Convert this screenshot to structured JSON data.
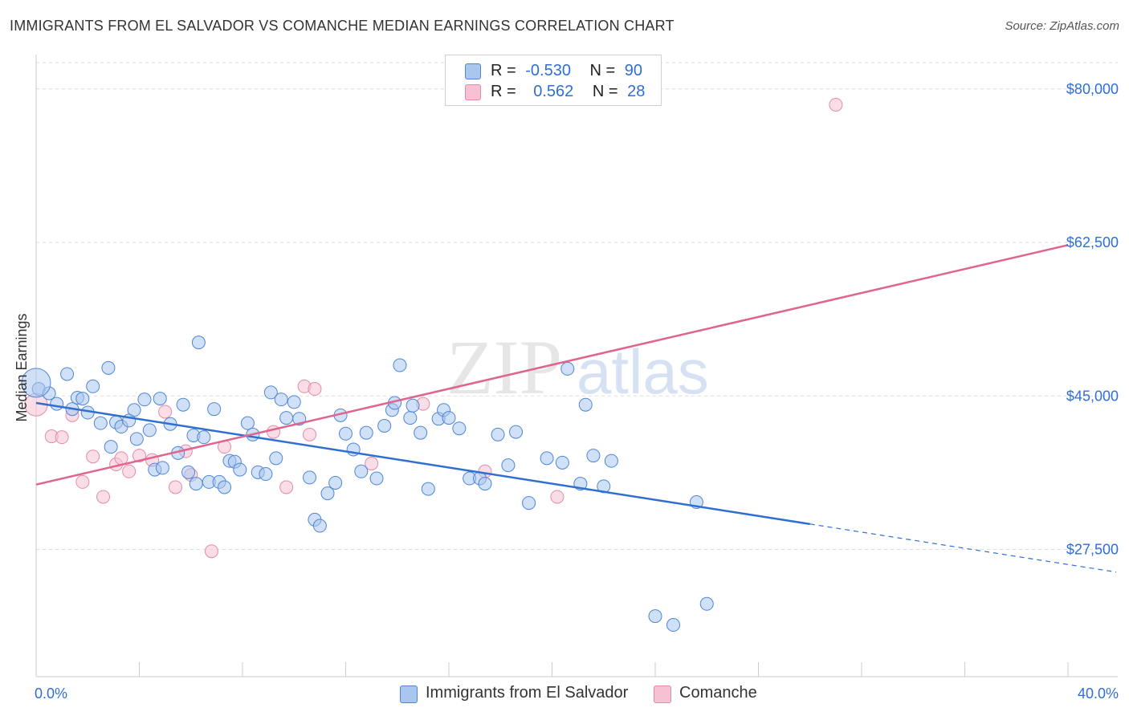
{
  "title": "IMMIGRANTS FROM EL SALVADOR VS COMANCHE MEDIAN EARNINGS CORRELATION CHART",
  "source": "Source: ZipAtlas.com",
  "watermark": {
    "part1": "ZIP",
    "part2": "atlas"
  },
  "colors": {
    "blue_fill": "#a9c6ef",
    "blue_stroke": "#4f86d6",
    "blue_line": "#2f6fd1",
    "pink_fill": "#f6c2d3",
    "pink_stroke": "#e48aa9",
    "pink_line": "#e0648d",
    "tick_label": "#2f6fd1",
    "grid": "#dddddd"
  },
  "legend": {
    "rows": [
      {
        "r_label": "R =",
        "r_value": "-0.530",
        "n_label": "N =",
        "n_value": "90"
      },
      {
        "r_label": "R =",
        "r_value": "0.562",
        "n_label": "N =",
        "n_value": "28"
      }
    ]
  },
  "bottom_legend": {
    "series1": "Immigrants from El Salvador",
    "series2": "Comanche"
  },
  "chart_data": {
    "type": "scatter",
    "title": "IMMIGRANTS FROM EL SALVADOR VS COMANCHE MEDIAN EARNINGS CORRELATION CHART",
    "xlabel": "",
    "ylabel": "Median Earnings",
    "xlim": [
      0,
      40
    ],
    "ylim": [
      13000,
      83000
    ],
    "x_tick_labels": [
      "0.0%",
      "40.0%"
    ],
    "y_ticks": [
      27500,
      45000,
      62500,
      80000
    ],
    "y_tick_labels": [
      "$27,500",
      "$45,000",
      "$62,500",
      "$80,000"
    ],
    "grid": true,
    "series": [
      {
        "name": "Immigrants from El Salvador",
        "color": "#a9c6ef",
        "points": [
          [
            0.1,
            45800
          ],
          [
            0.5,
            45300
          ],
          [
            0.8,
            44100
          ],
          [
            1.2,
            47500
          ],
          [
            1.4,
            43500
          ],
          [
            1.6,
            44800
          ],
          [
            1.8,
            44700
          ],
          [
            2.0,
            43100
          ],
          [
            2.2,
            46100
          ],
          [
            2.5,
            41900
          ],
          [
            2.8,
            48200
          ],
          [
            2.9,
            39200
          ],
          [
            3.1,
            42000
          ],
          [
            3.3,
            41500
          ],
          [
            3.6,
            42200
          ],
          [
            3.8,
            43400
          ],
          [
            3.9,
            40100
          ],
          [
            4.2,
            44600
          ],
          [
            4.4,
            41100
          ],
          [
            4.6,
            36600
          ],
          [
            4.8,
            44700
          ],
          [
            4.9,
            36800
          ],
          [
            5.2,
            41800
          ],
          [
            5.5,
            38500
          ],
          [
            5.7,
            44000
          ],
          [
            5.9,
            36300
          ],
          [
            6.1,
            40500
          ],
          [
            6.3,
            51100
          ],
          [
            6.5,
            40300
          ],
          [
            6.7,
            35200
          ],
          [
            6.9,
            43500
          ],
          [
            7.1,
            35200
          ],
          [
            7.3,
            34600
          ],
          [
            7.5,
            37600
          ],
          [
            7.7,
            37500
          ],
          [
            7.9,
            36600
          ],
          [
            8.2,
            41900
          ],
          [
            8.4,
            40600
          ],
          [
            8.6,
            36300
          ],
          [
            8.9,
            36100
          ],
          [
            9.1,
            45400
          ],
          [
            9.3,
            37900
          ],
          [
            9.5,
            44600
          ],
          [
            9.7,
            42500
          ],
          [
            10.0,
            44300
          ],
          [
            10.2,
            42400
          ],
          [
            10.6,
            35700
          ],
          [
            10.8,
            30900
          ],
          [
            11.0,
            30200
          ],
          [
            11.3,
            33900
          ],
          [
            11.6,
            35100
          ],
          [
            11.8,
            42800
          ],
          [
            12.0,
            40700
          ],
          [
            12.3,
            38900
          ],
          [
            12.6,
            36400
          ],
          [
            12.8,
            40800
          ],
          [
            13.2,
            35600
          ],
          [
            13.5,
            41600
          ],
          [
            13.8,
            43400
          ],
          [
            13.9,
            44200
          ],
          [
            14.1,
            48500
          ],
          [
            14.5,
            42500
          ],
          [
            14.6,
            43900
          ],
          [
            14.9,
            40800
          ],
          [
            15.2,
            34400
          ],
          [
            15.6,
            42400
          ],
          [
            15.8,
            43400
          ],
          [
            16.0,
            42500
          ],
          [
            16.4,
            41300
          ],
          [
            16.8,
            35600
          ],
          [
            17.2,
            35600
          ],
          [
            17.4,
            35000
          ],
          [
            17.9,
            40600
          ],
          [
            18.3,
            37100
          ],
          [
            18.6,
            40900
          ],
          [
            19.1,
            32800
          ],
          [
            19.8,
            37900
          ],
          [
            20.4,
            37400
          ],
          [
            20.6,
            48100
          ],
          [
            21.1,
            35000
          ],
          [
            21.3,
            44000
          ],
          [
            21.6,
            38200
          ],
          [
            22.0,
            34700
          ],
          [
            22.3,
            37600
          ],
          [
            24.0,
            19900
          ],
          [
            24.7,
            18900
          ],
          [
            25.6,
            32900
          ],
          [
            26.0,
            21300
          ],
          [
            0.0,
            46500
          ],
          [
            6.2,
            35000
          ]
        ]
      },
      {
        "name": "Comanche",
        "color": "#f6c2d3",
        "points": [
          [
            0.0,
            44000
          ],
          [
            0.6,
            40400
          ],
          [
            1.0,
            40300
          ],
          [
            1.4,
            42800
          ],
          [
            1.8,
            35200
          ],
          [
            2.2,
            38100
          ],
          [
            2.6,
            33500
          ],
          [
            3.1,
            37200
          ],
          [
            3.3,
            37900
          ],
          [
            3.6,
            36400
          ],
          [
            4.0,
            38200
          ],
          [
            4.5,
            37700
          ],
          [
            5.0,
            43200
          ],
          [
            5.4,
            34600
          ],
          [
            5.8,
            38700
          ],
          [
            6.0,
            36000
          ],
          [
            6.8,
            27300
          ],
          [
            7.3,
            39200
          ],
          [
            9.2,
            40900
          ],
          [
            9.7,
            34600
          ],
          [
            10.4,
            46100
          ],
          [
            10.6,
            40600
          ],
          [
            10.8,
            45800
          ],
          [
            13.0,
            37300
          ],
          [
            15.0,
            44100
          ],
          [
            17.4,
            36400
          ],
          [
            20.2,
            33500
          ],
          [
            31.0,
            78200
          ]
        ]
      }
    ],
    "trend_lines": [
      {
        "name": "Immigrants from El Salvador",
        "x": [
          0,
          40
        ],
        "y": [
          44200,
          25800
        ],
        "solid_until_x": 30
      },
      {
        "name": "Comanche",
        "x": [
          0,
          40
        ],
        "y": [
          34900,
          62200
        ]
      }
    ]
  }
}
